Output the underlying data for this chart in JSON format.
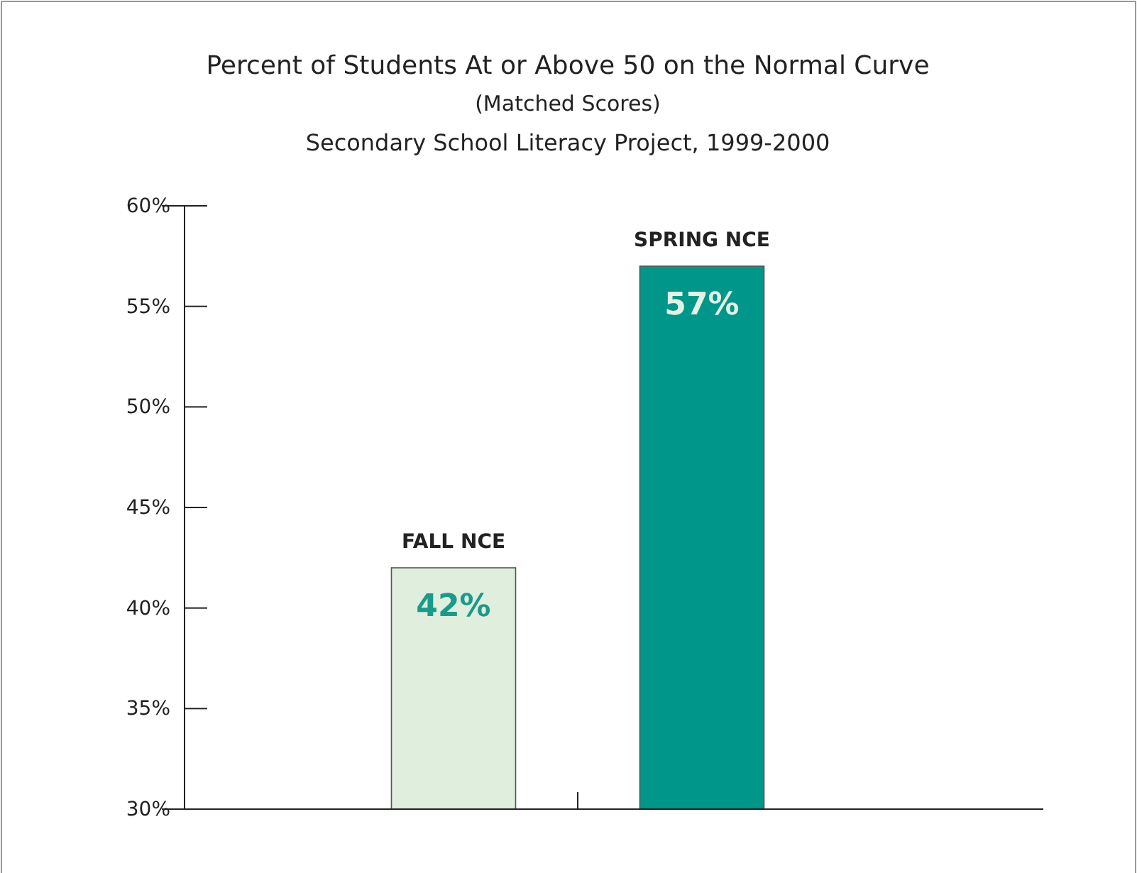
{
  "chart_data": {
    "type": "bar",
    "title": "Percent of Students At or Above 50 on the Normal Curve",
    "subtitle": "(Matched Scores)",
    "annotations": [
      "Secondary School Literacy Project, 1999-2000"
    ],
    "categories": [
      "FALL NCE",
      "SPRING NCE"
    ],
    "values": [
      42,
      57
    ],
    "colors": [
      "#dfeedd",
      "#00968a"
    ],
    "value_labels": [
      "42%",
      "57%"
    ],
    "ylim": [
      30,
      60
    ],
    "yticks": [
      {
        "value": 30,
        "label": "30%"
      },
      {
        "value": 35,
        "label": "35%"
      },
      {
        "value": 40,
        "label": "40%"
      },
      {
        "value": 45,
        "label": "45%"
      },
      {
        "value": 50,
        "label": "50%"
      },
      {
        "value": 55,
        "label": "55%"
      },
      {
        "value": 60,
        "label": "60%"
      }
    ],
    "grid": false
  }
}
